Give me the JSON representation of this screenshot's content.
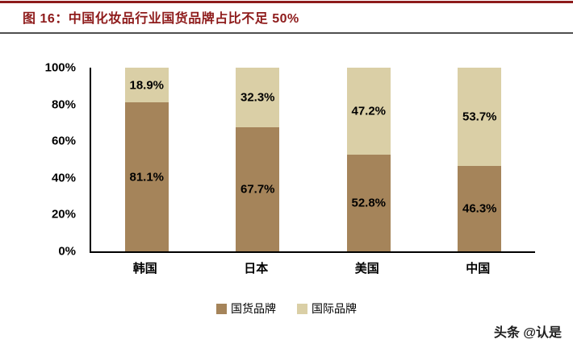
{
  "header": {
    "title": "图 16：中国化妆品行业国货品牌占比不足 50%",
    "title_color": "#8E1B1B",
    "top_rule_color": "#8E1B1B",
    "divider_color": "#4f4f4f"
  },
  "chart_data": {
    "type": "bar",
    "variant": "stacked-100-percent",
    "title": "中国化妆品行业国货品牌占比不足 50%",
    "categories": [
      "韩国",
      "日本",
      "美国",
      "中国"
    ],
    "series": [
      {
        "name": "国货品牌",
        "color": "#A5845A",
        "values": [
          81.1,
          67.7,
          52.8,
          46.3
        ]
      },
      {
        "name": "国际品牌",
        "color": "#DACFA6",
        "values": [
          18.9,
          32.3,
          47.2,
          53.7
        ]
      }
    ],
    "y_ticks": [
      "0%",
      "20%",
      "40%",
      "60%",
      "80%",
      "100%"
    ],
    "ylim": [
      0,
      100
    ],
    "value_suffix": "%",
    "grid": false,
    "legend_position": "bottom"
  },
  "watermark": {
    "text": "头条 @认是"
  }
}
